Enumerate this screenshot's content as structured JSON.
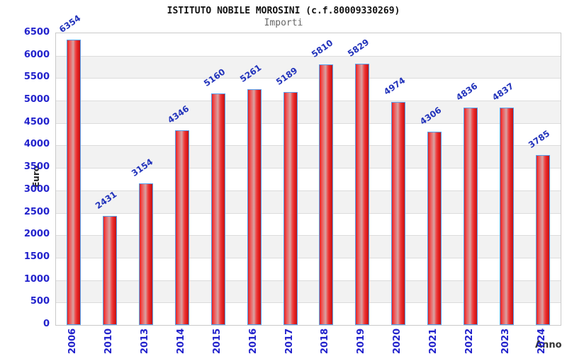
{
  "header": {
    "title": "ISTITUTO NOBILE MOROSINI (c.f.80009330269)",
    "subtitle": "Importi"
  },
  "chart_data": {
    "type": "bar",
    "title": "ISTITUTO NOBILE MOROSINI (c.f.80009330269)",
    "subtitle": "Importi",
    "xlabel": "Anno",
    "ylabel": "Euro",
    "categories": [
      "2006",
      "2010",
      "2013",
      "2014",
      "2015",
      "2016",
      "2017",
      "2018",
      "2019",
      "2020",
      "2021",
      "2022",
      "2023",
      "2024"
    ],
    "values": [
      6354,
      2431,
      3154,
      4346,
      5160,
      5261,
      5189,
      5810,
      5829,
      4974,
      4306,
      4836,
      4837,
      3785
    ],
    "ylim": [
      0,
      6500
    ],
    "ytick_step": 500,
    "grid": true,
    "legend": "none",
    "colors": {
      "bar_fill": "#e62222",
      "bar_highlight": "#d8a2a2",
      "bar_dark": "#c01515",
      "bar_border": "#55a0ee",
      "tick_label": "#2222cc",
      "value_label": "#2233bb",
      "band": "#f2f2f2",
      "gridline": "#dcdcdc",
      "plot_border": "#c9c9c9",
      "title": "#111111",
      "subtitle": "#666666",
      "axis_name": "#222222"
    }
  }
}
